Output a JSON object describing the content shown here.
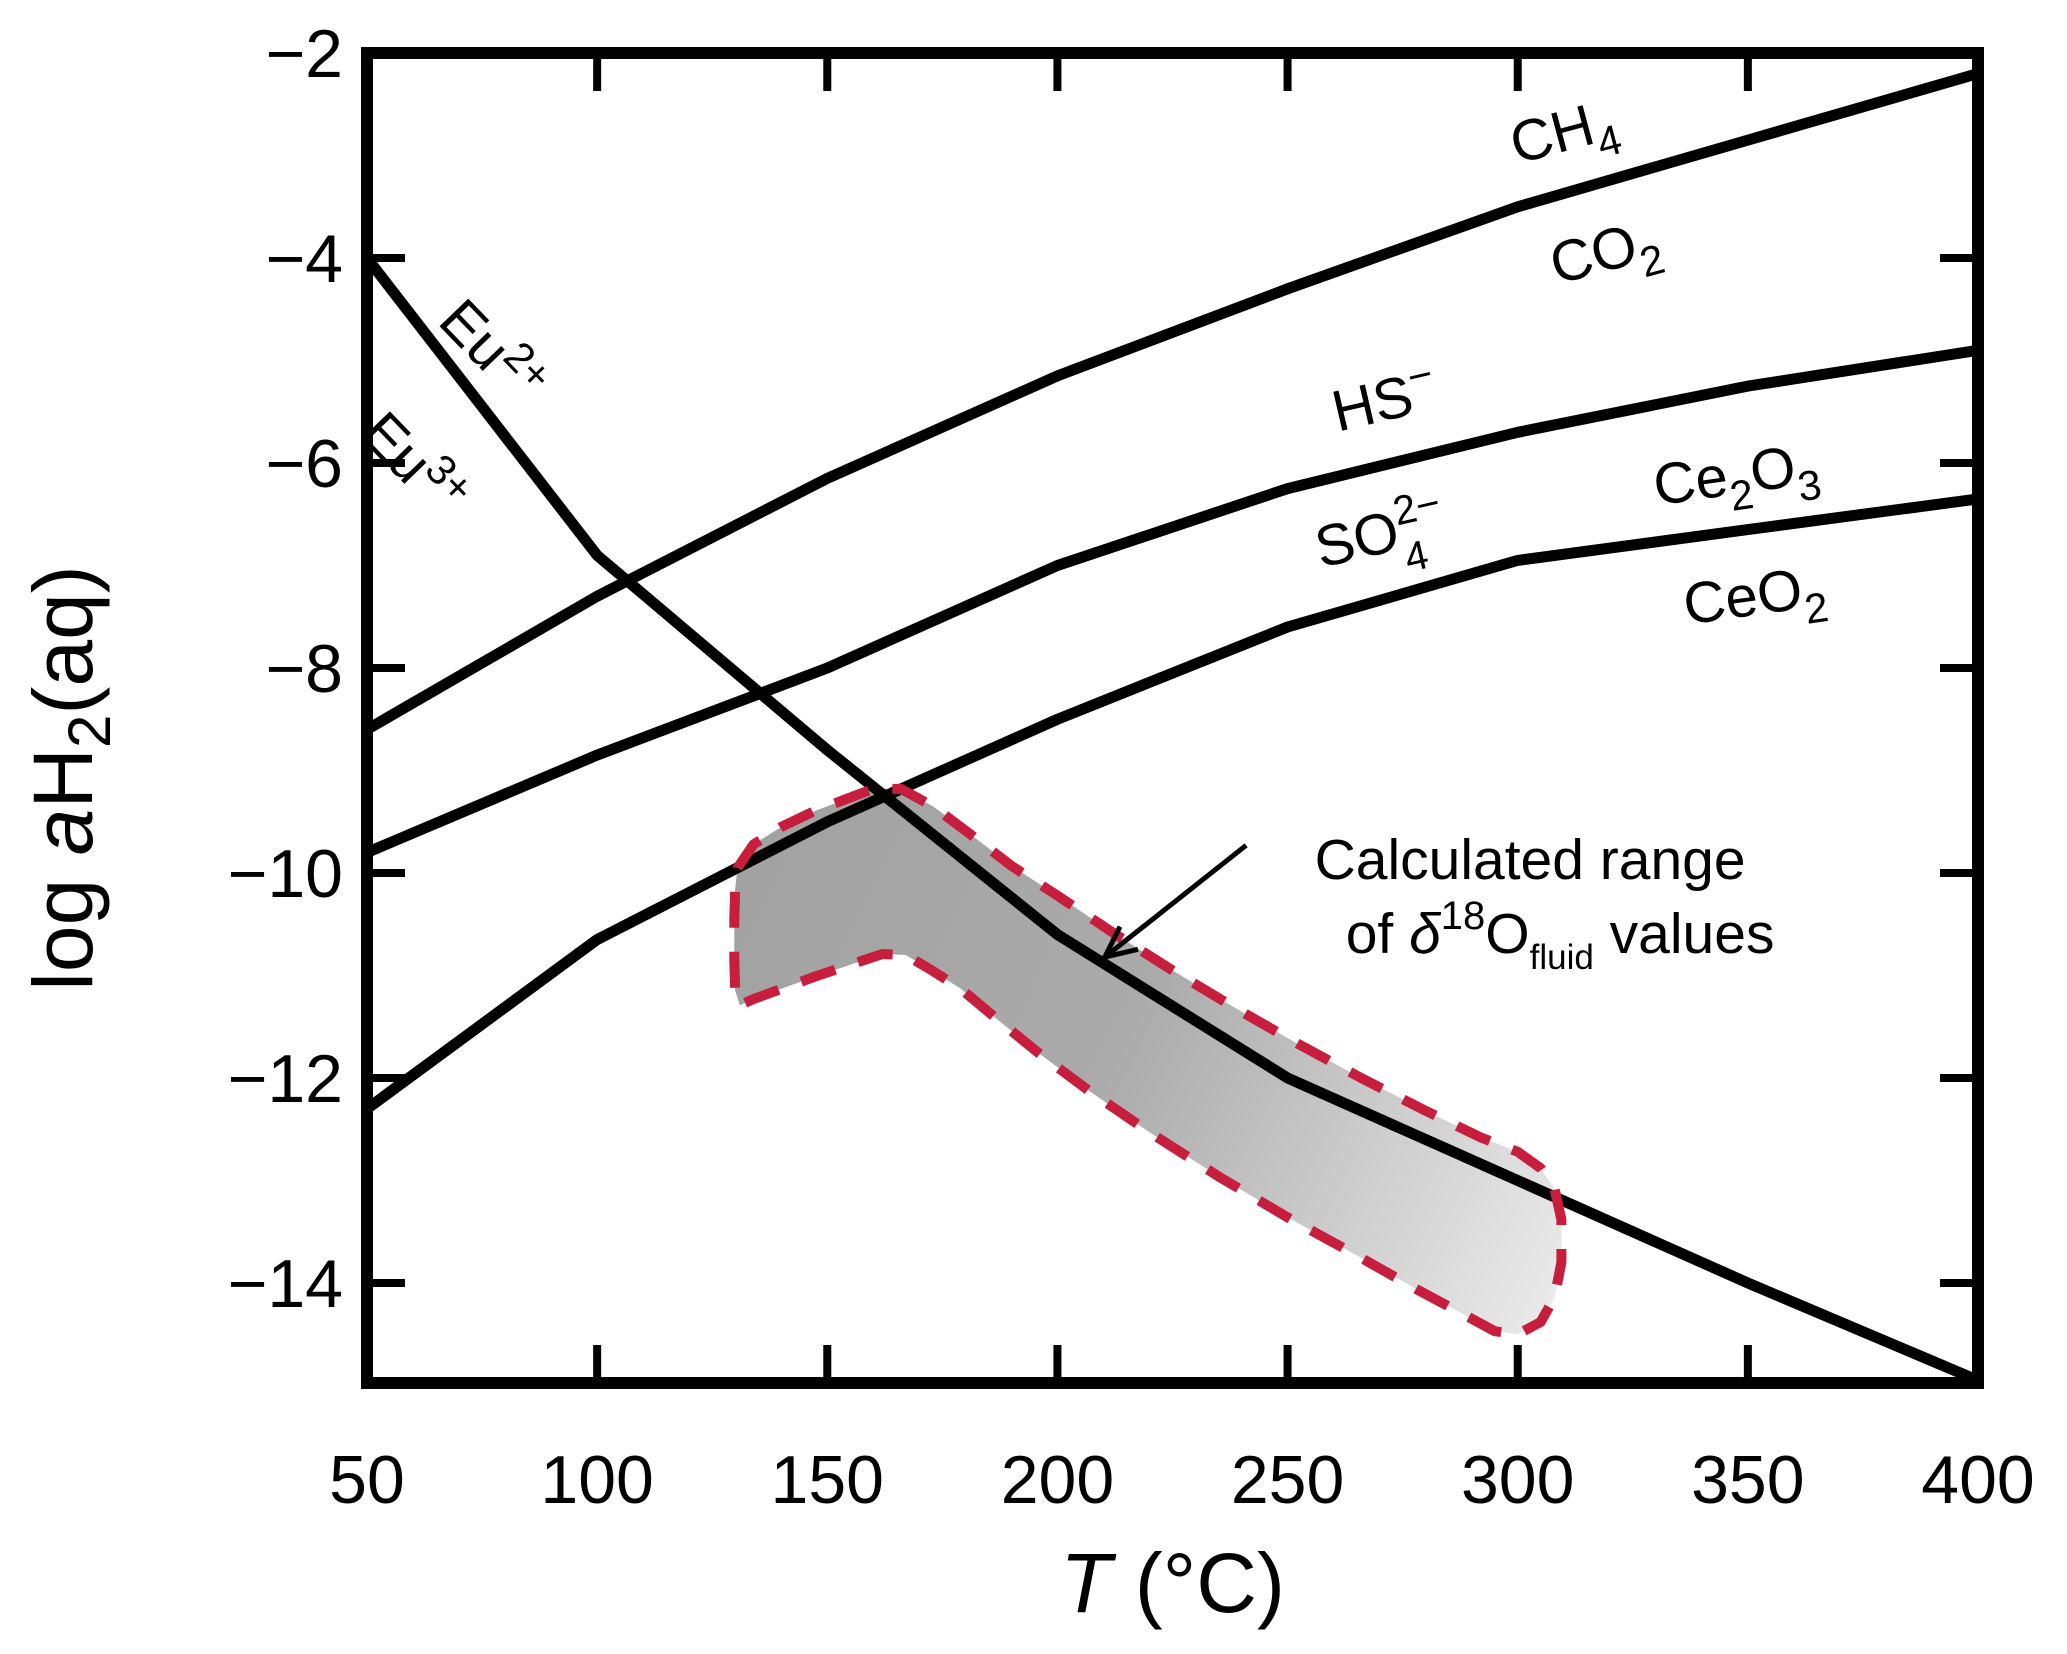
{
  "figure": {
    "background": "#ffffff",
    "line_color": "#000000",
    "region_border_color": "#c61e3c",
    "region_fill_start": "#a2a2a2",
    "region_fill_end": "#ebebeb"
  },
  "chart_data": {
    "type": "line",
    "title": "",
    "xlabel_parts": [
      {
        "t": "T",
        "italic": true
      },
      {
        "t": " (°C)"
      }
    ],
    "ylabel_parts": [
      {
        "t": "log "
      },
      {
        "t": "a",
        "italic": true
      },
      {
        "t": "H"
      },
      {
        "t": "2",
        "dy": 18,
        "s": 0.72
      },
      {
        "t": "(aq)",
        "dy": -18
      }
    ],
    "xlim": [
      50,
      400
    ],
    "ylim": [
      -15,
      -2
    ],
    "x_tick_values": [
      50,
      100,
      150,
      200,
      250,
      300,
      350,
      400
    ],
    "x_tick_labels": [
      "50",
      "100",
      "150",
      "200",
      "250",
      "300",
      "350",
      "400"
    ],
    "y_tick_values": [
      -2,
      -4,
      -6,
      -8,
      -10,
      -12,
      -14
    ],
    "y_tick_labels": [
      "−2",
      "−4",
      "−6",
      "−8",
      "−10",
      "−12",
      "−14"
    ],
    "grid": false,
    "x": [
      50,
      100,
      150,
      200,
      250,
      300,
      350,
      400
    ],
    "series": [
      {
        "name": "CH4/CO2 boundary",
        "values": [
          -8.6,
          -7.3,
          -6.15,
          -5.15,
          -4.3,
          -3.5,
          -2.85,
          -2.2
        ],
        "labels": [
          {
            "parts": [
              {
                "t": "CH"
              },
              {
                "t": "4",
                "dy": 16,
                "s": 0.72
              }
            ],
            "T": 311,
            "v": -2.95,
            "rot": -15,
            "side": "above"
          },
          {
            "parts": [
              {
                "t": "CO"
              },
              {
                "t": "2",
                "dy": 16,
                "s": 0.72
              }
            ],
            "T": 320,
            "v": -4.12,
            "rot": -15,
            "side": "below"
          }
        ]
      },
      {
        "name": "HS-/SO4 2- boundary",
        "values": [
          -9.8,
          -8.85,
          -8.0,
          -7.0,
          -6.25,
          -5.7,
          -5.25,
          -4.9
        ],
        "labels": [
          {
            "parts": [
              {
                "t": "HS"
              },
              {
                "t": "−",
                "dy": -22,
                "s": 0.72
              }
            ],
            "T": 272,
            "v": -5.58,
            "rot": -13,
            "side": "above"
          },
          {
            "parts": [
              {
                "t": "SO"
              },
              {
                "t": "2−",
                "dy": -24,
                "s": 0.7
              },
              {
                "t": "4",
                "dx": -46,
                "dy": 48,
                "s": 0.7
              }
            ],
            "T": 271,
            "v": -6.88,
            "rot": -13,
            "side": "below"
          }
        ]
      },
      {
        "name": "Ce2O3/CeO2 boundary",
        "values": [
          -12.3,
          -10.65,
          -9.5,
          -8.5,
          -7.6,
          -6.95,
          -6.65,
          -6.35
        ],
        "labels": [
          {
            "parts": [
              {
                "t": "Ce"
              },
              {
                "t": "2",
                "dy": 16,
                "s": 0.72
              },
              {
                "t": "O",
                "dy": -16
              },
              {
                "t": "3",
                "dy": 16,
                "s": 0.72
              }
            ],
            "T": 348,
            "v": -6.3,
            "rot": -8,
            "side": "above"
          },
          {
            "parts": [
              {
                "t": "CeO"
              },
              {
                "t": "2",
                "dy": 16,
                "s": 0.72
              }
            ],
            "T": 352,
            "v": -7.48,
            "rot": -8,
            "side": "below"
          }
        ]
      },
      {
        "name": "Eu2+/Eu3+ boundary",
        "values": [
          -4.0,
          -6.9,
          -8.8,
          -10.6,
          -12.0,
          -13.0,
          -14.0,
          -14.95
        ],
        "labels": [
          {
            "parts": [
              {
                "t": "Eu"
              },
              {
                "t": "2+",
                "dy": -22,
                "s": 0.72
              }
            ],
            "T": 74,
            "v": -5.05,
            "rot": 46,
            "side": "above"
          },
          {
            "parts": [
              {
                "t": "Eu"
              },
              {
                "t": "3+",
                "dy": -22,
                "s": 0.72
              }
            ],
            "T": 57,
            "v": -6.15,
            "rot": 46,
            "side": "below"
          }
        ]
      }
    ],
    "region": {
      "name": "calculated d18O fluid range",
      "outline": [
        [
          130.5,
          -9.95
        ],
        [
          134,
          -9.72
        ],
        [
          140,
          -9.55
        ],
        [
          147,
          -9.4
        ],
        [
          154,
          -9.28
        ],
        [
          160,
          -9.18
        ],
        [
          166,
          -9.18
        ],
        [
          173,
          -9.35
        ],
        [
          181,
          -9.62
        ],
        [
          190,
          -9.93
        ],
        [
          200,
          -10.22
        ],
        [
          212,
          -10.58
        ],
        [
          225,
          -10.95
        ],
        [
          238,
          -11.3
        ],
        [
          252,
          -11.66
        ],
        [
          266,
          -12.0
        ],
        [
          280,
          -12.32
        ],
        [
          292,
          -12.58
        ],
        [
          300,
          -12.72
        ],
        [
          305,
          -12.88
        ],
        [
          308,
          -13.08
        ],
        [
          309.5,
          -13.38
        ],
        [
          309.5,
          -13.8
        ],
        [
          308,
          -14.14
        ],
        [
          305,
          -14.38
        ],
        [
          300,
          -14.5
        ],
        [
          295,
          -14.47
        ],
        [
          288,
          -14.3
        ],
        [
          278,
          -14.06
        ],
        [
          265,
          -13.73
        ],
        [
          250,
          -13.36
        ],
        [
          235,
          -12.96
        ],
        [
          220,
          -12.53
        ],
        [
          207,
          -12.13
        ],
        [
          196,
          -11.76
        ],
        [
          187,
          -11.43
        ],
        [
          179,
          -11.13
        ],
        [
          172,
          -10.93
        ],
        [
          167,
          -10.8
        ],
        [
          162,
          -10.79
        ],
        [
          156,
          -10.88
        ],
        [
          148,
          -11.0
        ],
        [
          140,
          -11.13
        ],
        [
          134,
          -11.23
        ],
        [
          131,
          -11.29
        ],
        [
          130,
          -11.15
        ],
        [
          129.8,
          -10.85
        ],
        [
          129.8,
          -10.45
        ],
        [
          130,
          -10.15
        ],
        [
          130.5,
          -9.95
        ]
      ]
    },
    "annotation": {
      "lines": [
        {
          "parts": [
            {
              "t": "Calculated range"
            }
          ],
          "T": 302.7,
          "v": -10.06
        },
        {
          "parts": [
            {
              "t": "of "
            },
            {
              "t": "δ",
              "italic": true
            },
            {
              "t": "18",
              "dy": -24,
              "s": 0.7
            },
            {
              "t": "O",
              "dy": 24
            },
            {
              "t": "fluid",
              "dy": 16,
              "s": 0.62
            },
            {
              "t": " values",
              "dy": -16
            }
          ],
          "T": 309.2,
          "v": -10.78
        }
      ],
      "arrow": {
        "from": [
          241.0,
          -9.73
        ],
        "to": [
          210.3,
          -10.82
        ]
      }
    }
  }
}
